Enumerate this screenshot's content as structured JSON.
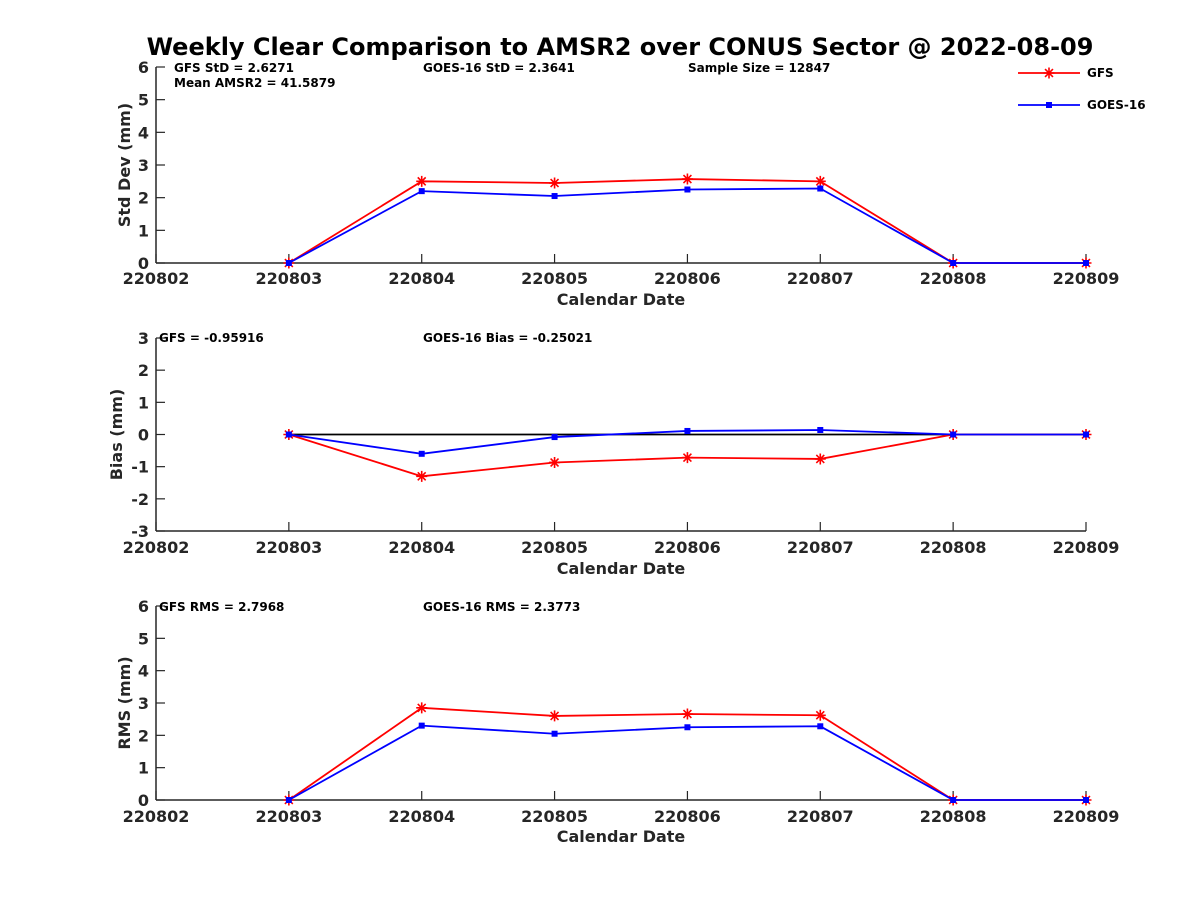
{
  "figure": {
    "title": "Weekly Clear Comparison to AMSR2 over CONUS Sector @ 2022-08-09"
  },
  "legend": {
    "placement": "top-right",
    "entries": [
      {
        "name": "GFS",
        "color": "#ff0000",
        "marker": "asterisk"
      },
      {
        "name": "GOES-16",
        "color": "#0000ff",
        "marker": "square"
      }
    ]
  },
  "chart_data": [
    {
      "type": "line",
      "xlabel": "Calendar Date",
      "ylabel": "Std Dev (mm)",
      "x": [
        "220802",
        "220803",
        "220804",
        "220805",
        "220806",
        "220807",
        "220808",
        "220809"
      ],
      "ylim": [
        0,
        6
      ],
      "yticks": [
        "0",
        "1",
        "2",
        "3",
        "4",
        "5",
        "6"
      ],
      "grid": false,
      "annotations": [
        "GFS StD = 2.6271",
        "Mean AMSR2 = 41.5879",
        "GOES-16 StD = 2.3641",
        "Sample Size = 12847"
      ],
      "series": [
        {
          "name": "GFS",
          "color": "#ff0000",
          "values": [
            null,
            0,
            2.5,
            2.45,
            2.57,
            2.5,
            0,
            0
          ]
        },
        {
          "name": "GOES-16",
          "color": "#0000ff",
          "values": [
            null,
            0,
            2.2,
            2.05,
            2.25,
            2.28,
            0,
            0
          ]
        }
      ]
    },
    {
      "type": "line",
      "xlabel": "Calendar Date",
      "ylabel": "Bias (mm)",
      "x": [
        "220802",
        "220803",
        "220804",
        "220805",
        "220806",
        "220807",
        "220808",
        "220809"
      ],
      "ylim": [
        -3,
        3
      ],
      "yticks": [
        "-3",
        "-2",
        "-1",
        "0",
        "1",
        "2",
        "3"
      ],
      "grid": false,
      "zero_line": true,
      "annotations": [
        "GFS = -0.95916",
        "GOES-16 Bias  = -0.25021"
      ],
      "series": [
        {
          "name": "GFS",
          "color": "#ff0000",
          "values": [
            null,
            0,
            -1.3,
            -0.87,
            -0.72,
            -0.76,
            0,
            0
          ]
        },
        {
          "name": "GOES-16",
          "color": "#0000ff",
          "values": [
            null,
            0,
            -0.6,
            -0.08,
            0.11,
            0.14,
            0,
            0
          ]
        }
      ]
    },
    {
      "type": "line",
      "xlabel": "Calendar Date",
      "ylabel": "RMS (mm)",
      "x": [
        "220802",
        "220803",
        "220804",
        "220805",
        "220806",
        "220807",
        "220808",
        "220809"
      ],
      "ylim": [
        0,
        6
      ],
      "yticks": [
        "0",
        "1",
        "2",
        "3",
        "4",
        "5",
        "6"
      ],
      "grid": false,
      "annotations": [
        "GFS RMS = 2.7968",
        "GOES-16 RMS = 2.3773"
      ],
      "series": [
        {
          "name": "GFS",
          "color": "#ff0000",
          "values": [
            null,
            0,
            2.85,
            2.6,
            2.66,
            2.62,
            0,
            0
          ]
        },
        {
          "name": "GOES-16",
          "color": "#0000ff",
          "values": [
            null,
            0,
            2.3,
            2.05,
            2.25,
            2.28,
            0,
            0
          ]
        }
      ]
    }
  ]
}
